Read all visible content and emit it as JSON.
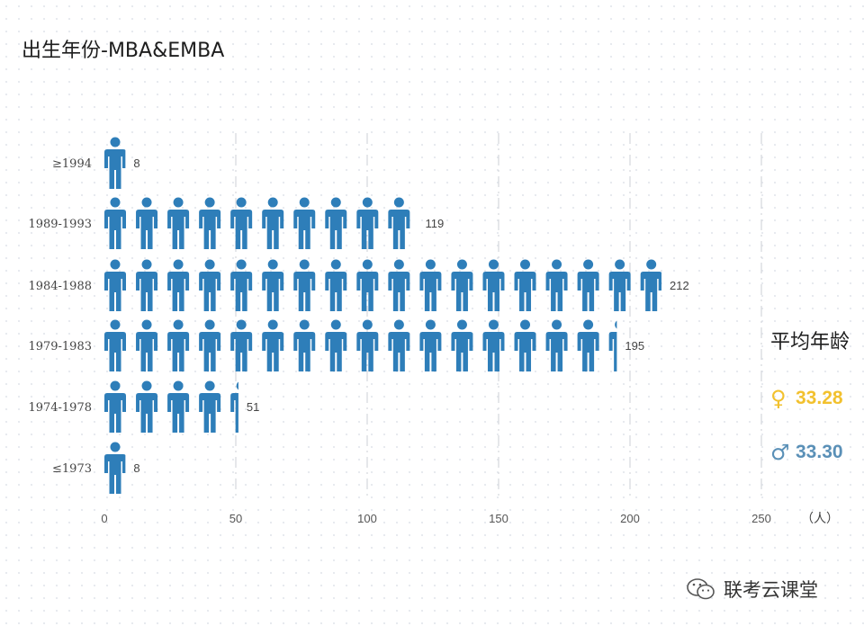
{
  "title": "出生年份-MBA&EMBA",
  "chart_data": {
    "type": "bar",
    "style": "pictograph",
    "orientation": "horizontal",
    "categories": [
      "≥1994",
      "1989-1993",
      "1984-1988",
      "1979-1983",
      "1974-1978",
      "≤1973"
    ],
    "values": [
      8,
      119,
      212,
      195,
      51,
      8
    ],
    "data_labels": [
      "8",
      "119",
      "212",
      "195",
      "51",
      "8"
    ],
    "xlim": [
      0,
      250
    ],
    "xticks": [
      "0",
      "50",
      "100",
      "150",
      "200",
      "250"
    ],
    "xunit": "（人）",
    "grid": "vertical dash-dot",
    "people_per_icon": 12,
    "bar_color": "#2e7eb9"
  },
  "side_panel": {
    "title": "平均年龄",
    "female": {
      "symbol": "♀",
      "value": "33.28",
      "color": "#f2c12e"
    },
    "male": {
      "symbol": "♂",
      "value": "33.30",
      "color": "#5a90b7"
    }
  },
  "watermark": {
    "text": "联考云课堂",
    "icon": "wechat-icon"
  }
}
